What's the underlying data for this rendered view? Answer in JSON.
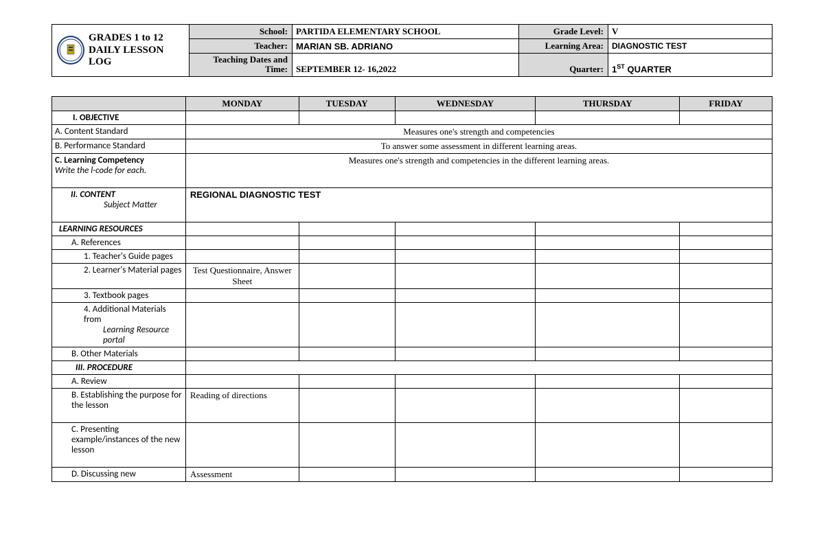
{
  "header": {
    "title_line1": "GRADES 1 to 12",
    "title_line2": "DAILY LESSON LOG",
    "labels": {
      "school": "School:",
      "teacher": "Teacher:",
      "dates": "Teaching Dates and Time:",
      "grade": "Grade Level:",
      "area": "Learning Area:",
      "quarter": "Quarter:"
    },
    "values": {
      "school": "PARTIDA ELEMENTARY SCHOOL",
      "teacher": "MARIAN SB. ADRIANO",
      "dates": "SEPTEMBER 12- 16,2022",
      "grade": "V",
      "area": "DIAGNOSTIC TEST",
      "quarter_pre": "1",
      "quarter_sup": "ST",
      "quarter_post": " QUARTER"
    }
  },
  "days": {
    "mon": "MONDAY",
    "tue": "TUESDAY",
    "wed": "WEDNESDAY",
    "thu": "THURSDAY",
    "fri": "FRIDAY"
  },
  "rows": {
    "objective": "I.    OBJECTIVE",
    "content_std": "A.    Content Standard",
    "content_std_val": "Measures one's strength and competencies",
    "perf_std": "B.    Performance Standard",
    "perf_std_val": "To answer some assessment in different learning areas.",
    "learn_comp": "C.  Learning Competency",
    "learn_comp_note": "Write the l-code for each.",
    "learn_comp_val": "Measures one's strength and competencies in the different learning areas.",
    "content_sec": "II.         CONTENT",
    "content_sub": "Subject Matter",
    "content_val": "REGIONAL DIAGNOSTIC TEST",
    "resources": "LEARNING RESOURCES",
    "references": "A.    References",
    "tg": "1.    Teacher's Guide pages",
    "lm": "2.    Learner's Material pages",
    "lm_val": "Test Questionnaire, Answer Sheet",
    "tb": "3.    Textbook pages",
    "add": "4.    Additional Materials from",
    "add_sub": "Learning Resource portal",
    "other": "B.    Other Materials",
    "procedure": "III.        PROCEDURE",
    "review": "A.    Review",
    "establish": "B.    Establishing the purpose for the lesson",
    "establish_val": "Reading of directions",
    "present": "C.    Presenting example/instances of the new lesson",
    "discuss": "D.    Discussing new",
    "discuss_val": "Assessment"
  },
  "style": {
    "col_widths": {
      "label": "195px",
      "mon": "165px",
      "tue": "140px",
      "wed": "205px",
      "thu": "210px",
      "fri": "135px"
    }
  }
}
